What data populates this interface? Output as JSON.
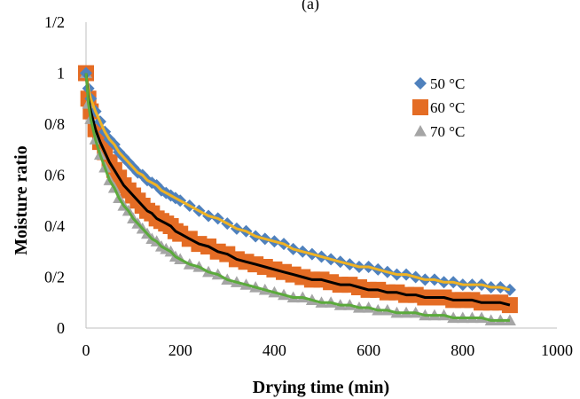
{
  "chart_data": {
    "type": "scatter",
    "title": "(a)",
    "xlabel": "Drying time (min)",
    "ylabel": "Moisture ratio",
    "xlim": [
      0,
      1000
    ],
    "ylim": [
      0,
      1.2
    ],
    "x_ticks": [
      "0",
      "200",
      "400",
      "600",
      "800",
      "1000"
    ],
    "y_ticks": [
      "0",
      "0/2",
      "0/4",
      "0/6",
      "0/8",
      "1",
      "1/2"
    ],
    "grid": false,
    "legend_position": "right",
    "series": [
      {
        "name": "50 °C",
        "marker": "diamond",
        "color": "#4F81BD",
        "fit_color": "#F0B323",
        "x": [
          0,
          5,
          10,
          20,
          30,
          40,
          50,
          60,
          70,
          80,
          90,
          100,
          110,
          120,
          130,
          140,
          150,
          160,
          170,
          180,
          190,
          200,
          220,
          240,
          260,
          280,
          300,
          320,
          340,
          360,
          380,
          400,
          420,
          440,
          460,
          480,
          500,
          520,
          540,
          560,
          580,
          600,
          620,
          640,
          660,
          680,
          700,
          720,
          740,
          760,
          780,
          800,
          820,
          840,
          860,
          880,
          900
        ],
        "values": [
          1.0,
          0.94,
          0.9,
          0.85,
          0.81,
          0.77,
          0.74,
          0.72,
          0.69,
          0.67,
          0.65,
          0.63,
          0.61,
          0.6,
          0.58,
          0.57,
          0.56,
          0.54,
          0.53,
          0.52,
          0.51,
          0.5,
          0.48,
          0.46,
          0.44,
          0.43,
          0.41,
          0.39,
          0.38,
          0.36,
          0.35,
          0.34,
          0.33,
          0.31,
          0.3,
          0.29,
          0.28,
          0.27,
          0.26,
          0.25,
          0.24,
          0.24,
          0.23,
          0.22,
          0.21,
          0.21,
          0.2,
          0.19,
          0.19,
          0.18,
          0.18,
          0.17,
          0.17,
          0.17,
          0.16,
          0.16,
          0.15
        ]
      },
      {
        "name": "60 °C",
        "marker": "square",
        "color": "#E46C24",
        "fit_color": "#000000",
        "x": [
          0,
          5,
          10,
          20,
          30,
          40,
          50,
          60,
          70,
          80,
          90,
          100,
          110,
          120,
          130,
          140,
          150,
          160,
          170,
          180,
          190,
          200,
          220,
          240,
          260,
          280,
          300,
          320,
          340,
          360,
          380,
          400,
          420,
          440,
          460,
          480,
          500,
          520,
          540,
          560,
          580,
          600,
          620,
          640,
          660,
          680,
          700,
          720,
          740,
          760,
          780,
          800,
          820,
          840,
          860,
          880,
          900
        ],
        "values": [
          1.0,
          0.9,
          0.85,
          0.78,
          0.73,
          0.69,
          0.65,
          0.62,
          0.59,
          0.56,
          0.54,
          0.52,
          0.5,
          0.48,
          0.46,
          0.45,
          0.43,
          0.42,
          0.41,
          0.4,
          0.38,
          0.37,
          0.35,
          0.33,
          0.32,
          0.3,
          0.29,
          0.27,
          0.26,
          0.25,
          0.24,
          0.23,
          0.22,
          0.21,
          0.2,
          0.19,
          0.19,
          0.18,
          0.17,
          0.17,
          0.16,
          0.15,
          0.15,
          0.14,
          0.14,
          0.13,
          0.13,
          0.12,
          0.12,
          0.12,
          0.11,
          0.11,
          0.11,
          0.1,
          0.1,
          0.1,
          0.09
        ]
      },
      {
        "name": "70 °C",
        "marker": "triangle",
        "color": "#A5A5A5",
        "fit_color": "#5BAA3C",
        "x": [
          0,
          5,
          10,
          20,
          30,
          40,
          50,
          60,
          70,
          80,
          90,
          100,
          110,
          120,
          130,
          140,
          150,
          160,
          170,
          180,
          190,
          200,
          220,
          240,
          260,
          280,
          300,
          320,
          340,
          360,
          380,
          400,
          420,
          440,
          460,
          480,
          500,
          520,
          540,
          560,
          580,
          600,
          620,
          640,
          660,
          680,
          700,
          720,
          740,
          760,
          780,
          800,
          820,
          840,
          860,
          880,
          900
        ],
        "values": [
          1.0,
          0.88,
          0.82,
          0.74,
          0.68,
          0.63,
          0.58,
          0.55,
          0.51,
          0.48,
          0.46,
          0.43,
          0.41,
          0.39,
          0.37,
          0.35,
          0.34,
          0.32,
          0.31,
          0.3,
          0.28,
          0.27,
          0.25,
          0.24,
          0.22,
          0.21,
          0.19,
          0.18,
          0.17,
          0.16,
          0.15,
          0.14,
          0.13,
          0.12,
          0.12,
          0.11,
          0.1,
          0.1,
          0.09,
          0.09,
          0.08,
          0.08,
          0.07,
          0.07,
          0.06,
          0.06,
          0.06,
          0.05,
          0.05,
          0.05,
          0.04,
          0.04,
          0.04,
          0.04,
          0.03,
          0.03,
          0.03
        ]
      }
    ]
  }
}
